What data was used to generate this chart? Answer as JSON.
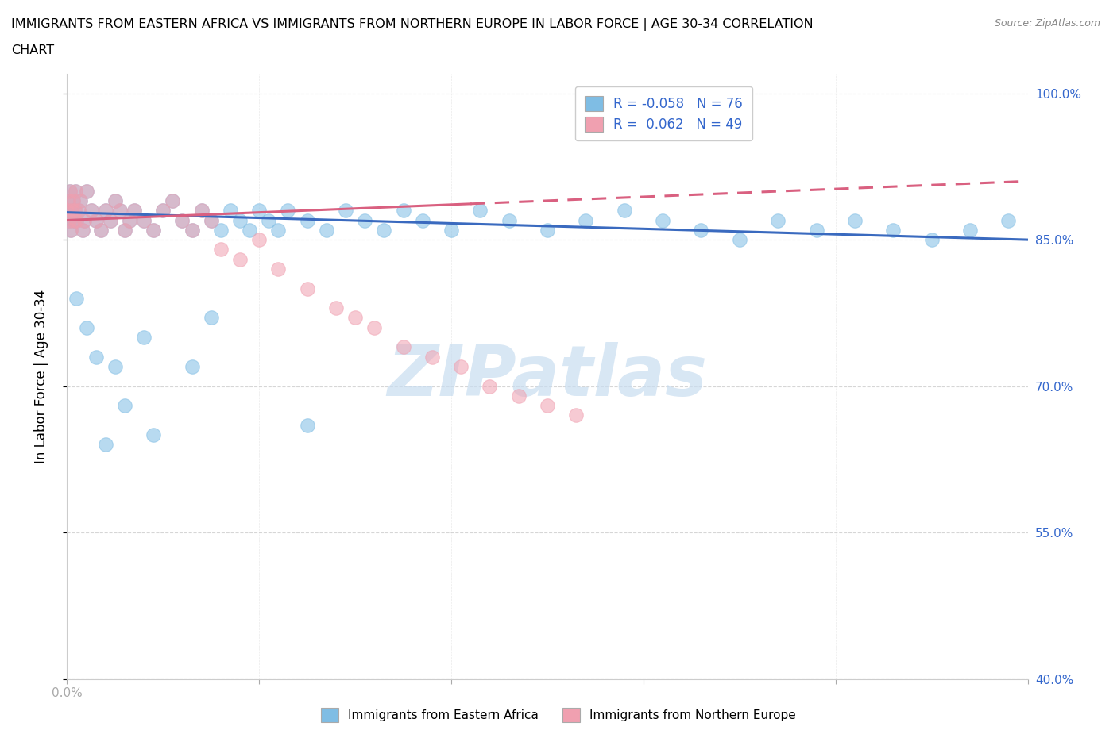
{
  "title_line1": "IMMIGRANTS FROM EASTERN AFRICA VS IMMIGRANTS FROM NORTHERN EUROPE IN LABOR FORCE | AGE 30-34 CORRELATION",
  "title_line2": "CHART",
  "source_text": "Source: ZipAtlas.com",
  "ylabel": "In Labor Force | Age 30-34",
  "x_min": 0.0,
  "x_max": 1.0,
  "y_min": 0.4,
  "y_max": 1.02,
  "y_ticks": [
    0.4,
    0.55,
    0.7,
    0.85,
    1.0
  ],
  "y_tick_labels": [
    "40.0%",
    "55.0%",
    "70.0%",
    "85.0%",
    "100.0%"
  ],
  "x_ticks": [
    0.0,
    0.2,
    0.4,
    0.6,
    0.8,
    1.0
  ],
  "color_blue": "#7fbde4",
  "color_pink": "#f0a0b0",
  "color_blue_line": "#3a6abf",
  "color_pink_line": "#d96080",
  "watermark_color": "#c8ddf0",
  "legend_r1": "R = -0.058",
  "legend_n1": "N = 76",
  "legend_r2": "R =  0.062",
  "legend_n2": "N = 49",
  "ea_x": [
    0.0,
    0.001,
    0.002,
    0.003,
    0.004,
    0.005,
    0.006,
    0.007,
    0.008,
    0.009,
    0.01,
    0.012,
    0.014,
    0.016,
    0.018,
    0.02,
    0.025,
    0.03,
    0.035,
    0.04,
    0.045,
    0.05,
    0.055,
    0.06,
    0.065,
    0.07,
    0.08,
    0.09,
    0.1,
    0.11,
    0.12,
    0.13,
    0.14,
    0.15,
    0.16,
    0.17,
    0.18,
    0.19,
    0.2,
    0.21,
    0.22,
    0.23,
    0.25,
    0.27,
    0.29,
    0.31,
    0.33,
    0.35,
    0.37,
    0.4,
    0.43,
    0.46,
    0.5,
    0.54,
    0.58,
    0.62,
    0.66,
    0.7,
    0.74,
    0.78,
    0.82,
    0.86,
    0.9,
    0.94,
    0.98,
    0.15,
    0.08,
    0.05,
    0.03,
    0.02,
    0.01,
    0.04,
    0.06,
    0.09,
    0.13,
    0.25
  ],
  "ea_y": [
    0.88,
    0.89,
    0.87,
    0.9,
    0.86,
    0.88,
    0.89,
    0.87,
    0.88,
    0.9,
    0.87,
    0.88,
    0.89,
    0.86,
    0.87,
    0.9,
    0.88,
    0.87,
    0.86,
    0.88,
    0.87,
    0.89,
    0.88,
    0.86,
    0.87,
    0.88,
    0.87,
    0.86,
    0.88,
    0.89,
    0.87,
    0.86,
    0.88,
    0.87,
    0.86,
    0.88,
    0.87,
    0.86,
    0.88,
    0.87,
    0.86,
    0.88,
    0.87,
    0.86,
    0.88,
    0.87,
    0.86,
    0.88,
    0.87,
    0.86,
    0.88,
    0.87,
    0.86,
    0.87,
    0.88,
    0.87,
    0.86,
    0.85,
    0.87,
    0.86,
    0.87,
    0.86,
    0.85,
    0.86,
    0.87,
    0.77,
    0.75,
    0.72,
    0.73,
    0.76,
    0.79,
    0.64,
    0.68,
    0.65,
    0.72,
    0.66
  ],
  "ne_x": [
    0.0,
    0.001,
    0.002,
    0.003,
    0.004,
    0.005,
    0.006,
    0.007,
    0.008,
    0.009,
    0.01,
    0.012,
    0.014,
    0.016,
    0.018,
    0.02,
    0.025,
    0.03,
    0.035,
    0.04,
    0.045,
    0.05,
    0.055,
    0.06,
    0.065,
    0.07,
    0.08,
    0.09,
    0.1,
    0.11,
    0.12,
    0.13,
    0.14,
    0.15,
    0.16,
    0.18,
    0.2,
    0.22,
    0.25,
    0.28,
    0.3,
    0.32,
    0.35,
    0.38,
    0.41,
    0.44,
    0.47,
    0.5,
    0.53
  ],
  "ne_y": [
    0.88,
    0.89,
    0.87,
    0.9,
    0.86,
    0.88,
    0.89,
    0.87,
    0.88,
    0.9,
    0.87,
    0.88,
    0.89,
    0.86,
    0.87,
    0.9,
    0.88,
    0.87,
    0.86,
    0.88,
    0.87,
    0.89,
    0.88,
    0.86,
    0.87,
    0.88,
    0.87,
    0.86,
    0.88,
    0.89,
    0.87,
    0.86,
    0.88,
    0.87,
    0.84,
    0.83,
    0.85,
    0.82,
    0.8,
    0.78,
    0.77,
    0.76,
    0.74,
    0.73,
    0.72,
    0.7,
    0.69,
    0.68,
    0.67
  ],
  "ea_line_start_y": 0.878,
  "ea_line_end_y": 0.85,
  "ne_line_start_y": 0.87,
  "ne_line_end_y": 0.91,
  "ne_line_solid_end_x": 0.42,
  "ne_line_dash_start_x": 0.42,
  "ne_line_end_x": 1.0,
  "bottom_legend_labels": [
    "Immigrants from Eastern Africa",
    "Immigrants from Northern Europe"
  ]
}
